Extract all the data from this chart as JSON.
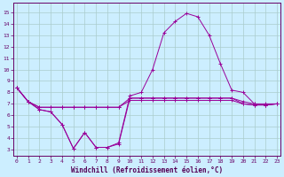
{
  "xlabel": "Windchill (Refroidissement éolien,°C)",
  "bg_color": "#cceeff",
  "grid_color": "#aacccc",
  "line_color": "#990099",
  "x_ticks": [
    0,
    1,
    2,
    3,
    4,
    5,
    6,
    7,
    8,
    9,
    10,
    11,
    12,
    13,
    14,
    15,
    16,
    17,
    18,
    19,
    20,
    21,
    22,
    23
  ],
  "y_ticks": [
    3,
    4,
    5,
    6,
    7,
    8,
    9,
    10,
    11,
    12,
    13,
    14,
    15
  ],
  "xlim": [
    -0.3,
    23.3
  ],
  "ylim": [
    2.5,
    15.8
  ],
  "line1_x": [
    0,
    1,
    2,
    3,
    4,
    5,
    6,
    7,
    8,
    9,
    10,
    11,
    12,
    13,
    14,
    15,
    16,
    17,
    18,
    19,
    20,
    21,
    22,
    23
  ],
  "line1_y": [
    8.4,
    7.2,
    6.5,
    6.3,
    5.2,
    3.1,
    4.5,
    3.2,
    3.2,
    3.5,
    7.5,
    7.5,
    7.5,
    7.5,
    7.5,
    7.5,
    7.5,
    7.5,
    7.5,
    7.5,
    7.0,
    6.9,
    6.9,
    7.0
  ],
  "line2_x": [
    0,
    1,
    2,
    3,
    4,
    5,
    6,
    7,
    8,
    9,
    10,
    11,
    12,
    13,
    14,
    15,
    16,
    17,
    18,
    19,
    20,
    21,
    22,
    23
  ],
  "line2_y": [
    8.4,
    7.2,
    6.5,
    6.3,
    5.2,
    3.1,
    4.5,
    3.2,
    3.2,
    3.6,
    7.7,
    8.0,
    10.0,
    13.2,
    14.2,
    14.9,
    14.6,
    13.0,
    10.5,
    8.2,
    8.0,
    7.0,
    6.9,
    7.0
  ],
  "line3_x": [
    0,
    1,
    2,
    3,
    4,
    5,
    6,
    7,
    8,
    9,
    10,
    11,
    12,
    13,
    14,
    15,
    16,
    17,
    18,
    19,
    20,
    21,
    22,
    23
  ],
  "line3_y": [
    8.4,
    7.2,
    6.7,
    6.7,
    6.7,
    6.7,
    6.7,
    6.7,
    6.7,
    6.7,
    7.5,
    7.5,
    7.5,
    7.5,
    7.5,
    7.5,
    7.5,
    7.5,
    7.5,
    7.5,
    7.2,
    7.0,
    7.0,
    7.0
  ],
  "line4_x": [
    0,
    1,
    2,
    3,
    4,
    5,
    6,
    7,
    8,
    9,
    10,
    11,
    12,
    13,
    14,
    15,
    16,
    17,
    18,
    19,
    20,
    21,
    22,
    23
  ],
  "line4_y": [
    8.4,
    7.2,
    6.7,
    6.7,
    6.7,
    6.7,
    6.7,
    6.7,
    6.7,
    6.7,
    7.3,
    7.3,
    7.3,
    7.3,
    7.3,
    7.3,
    7.3,
    7.3,
    7.3,
    7.3,
    7.0,
    6.9,
    6.9,
    7.0
  ]
}
